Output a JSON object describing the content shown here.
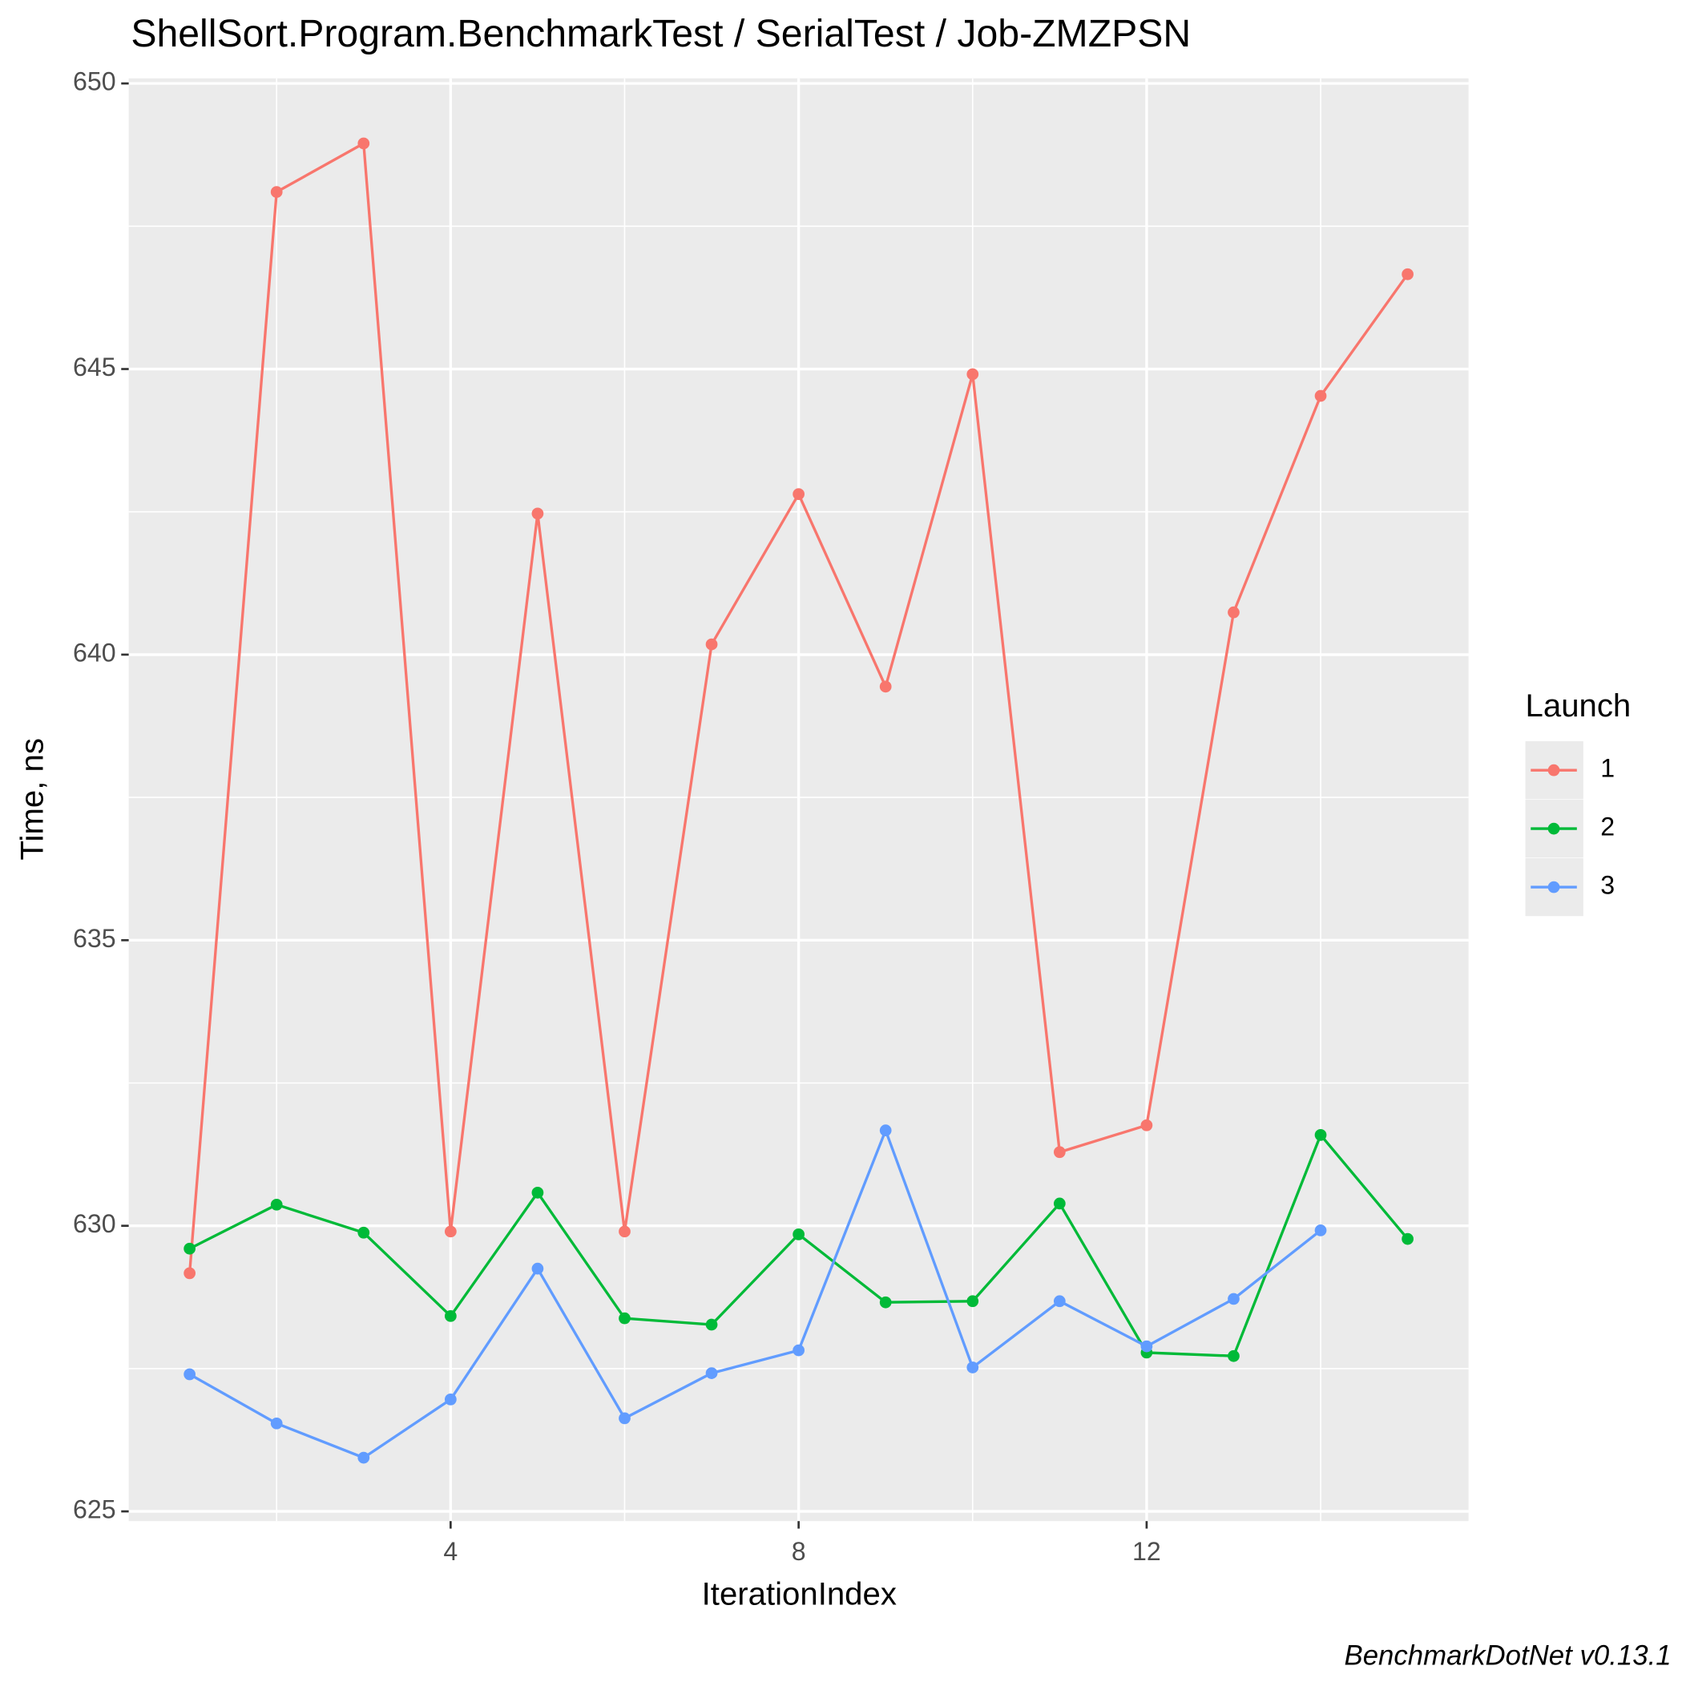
{
  "chart_data": {
    "type": "line",
    "title": "ShellSort.Program.BenchmarkTest / SerialTest / Job-ZMZPSN",
    "x_label": "IterationIndex",
    "y_label": "Time, ns",
    "legend_title": "Launch",
    "footnote": "BenchmarkDotNet v0.13.1",
    "x": [
      1,
      2,
      3,
      4,
      5,
      6,
      7,
      8,
      9,
      10,
      11,
      12,
      13,
      14,
      15
    ],
    "series": [
      {
        "name": "1",
        "color": "#F8766D",
        "values": [
          629.17,
          648.1,
          648.95,
          629.9,
          642.47,
          629.9,
          640.18,
          642.81,
          639.44,
          644.91,
          631.29,
          631.76,
          640.74,
          644.53,
          646.66
        ]
      },
      {
        "name": "2",
        "color": "#00BA38",
        "values": [
          629.6,
          630.37,
          629.88,
          628.42,
          630.58,
          628.38,
          628.27,
          629.85,
          628.66,
          628.68,
          630.39,
          627.78,
          627.72,
          631.59,
          629.77
        ]
      },
      {
        "name": "3",
        "color": "#619CFF",
        "values": [
          627.4,
          626.54,
          625.94,
          626.96,
          629.25,
          626.63,
          627.42,
          627.82,
          631.67,
          627.52,
          628.68,
          627.89,
          628.72,
          629.92,
          null
        ]
      }
    ],
    "xlim": [
      0.3,
      15.7
    ],
    "xticks": [
      4,
      8,
      12
    ],
    "minor_xticks": [
      2,
      6,
      10,
      14
    ],
    "ylim": [
      624.83,
      650.09
    ],
    "yticks": [
      625,
      630,
      635,
      640,
      645,
      650
    ],
    "minor_yticks": [
      627.5,
      632.5,
      637.5,
      642.5,
      647.5
    ],
    "grid": true,
    "legend_position": "right"
  }
}
